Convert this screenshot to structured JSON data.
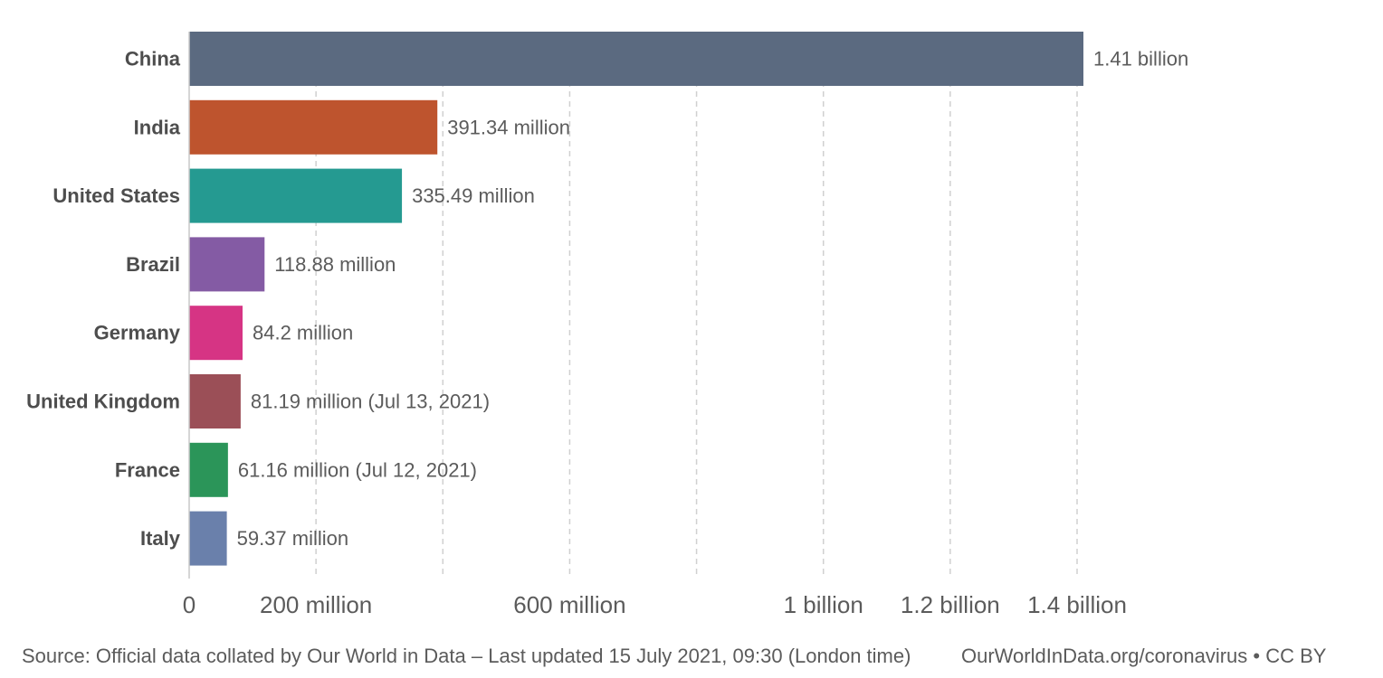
{
  "chart_data": {
    "type": "bar",
    "orientation": "horizontal",
    "categories": [
      "China",
      "India",
      "United States",
      "Brazil",
      "Germany",
      "United Kingdom",
      "France",
      "Italy"
    ],
    "values": [
      1410000000,
      391340000,
      335490000,
      118880000,
      84200000,
      81190000,
      61160000,
      59370000
    ],
    "value_labels": [
      "1.41 billion",
      "391.34 million",
      "335.49 million",
      "118.88 million",
      "84.2 million",
      "81.19 million (Jul 13, 2021)",
      "61.16 million (Jul 12, 2021)",
      "59.37 million"
    ],
    "colors": [
      "#5b6a80",
      "#be542e",
      "#259a91",
      "#845ba4",
      "#d63484",
      "#9b4f57",
      "#2b9559",
      "#6a80ab"
    ],
    "xlim": [
      0,
      1410000000
    ],
    "gridlines": [
      200000000,
      400000000,
      600000000,
      800000000,
      1000000000,
      1200000000,
      1400000000
    ],
    "x_ticks": [
      {
        "value": 0,
        "label": "0"
      },
      {
        "value": 200000000,
        "label": "200 million"
      },
      {
        "value": 600000000,
        "label": "600 million"
      },
      {
        "value": 1000000000,
        "label": "1 billion"
      },
      {
        "value": 1200000000,
        "label": "1.2 billion"
      },
      {
        "value": 1400000000,
        "label": "1.4 billion"
      }
    ],
    "grid": true,
    "title": "",
    "xlabel": "",
    "ylabel": ""
  },
  "footer": {
    "source": "Source: Official data collated by Our World in Data – Last updated 15 July 2021, 09:30 (London time)",
    "credit": "OurWorldInData.org/coronavirus • CC BY"
  },
  "style": {
    "category_label_color": "#4d4d4d",
    "value_label_color": "#5b5b5b",
    "tick_label_color": "#5b5b5b",
    "grid_color": "#d0d0d0",
    "axis_color": "#c8c8c8"
  }
}
